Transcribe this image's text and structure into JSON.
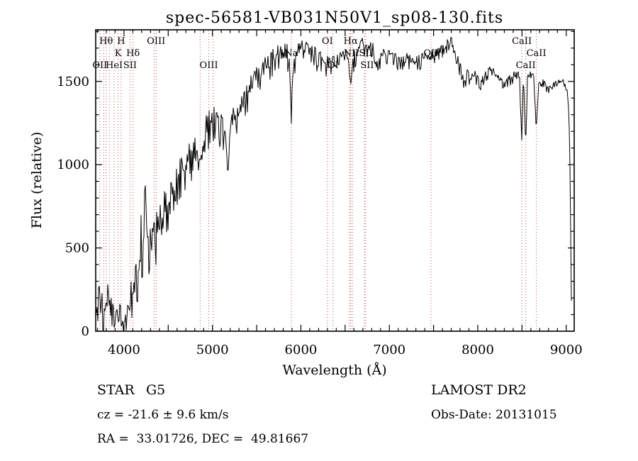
{
  "title": "spec-56581-VB031N50V1_sp08-130.fits",
  "colors": {
    "background": "#ffffff",
    "spectrum": "#000000",
    "frame": "#000000",
    "line_marker": "#b05050",
    "halpha_marker": "#bb2222"
  },
  "axes": {
    "x": {
      "label": "Wavelength (Å)",
      "min": 3680,
      "max": 9090,
      "tick_labels": [
        "4000",
        "5000",
        "6000",
        "7000",
        "8000",
        "9000"
      ],
      "tick_values": [
        4000,
        5000,
        6000,
        7000,
        8000,
        9000
      ],
      "major_step": 500,
      "minor_step": 100
    },
    "y": {
      "label": "Flux (relative)",
      "min": 0,
      "max": 1810,
      "tick_labels": [
        "0",
        "500",
        "1000",
        "1500"
      ],
      "tick_values": [
        0,
        500,
        1000,
        1500
      ],
      "major_step": 500,
      "minor_step": 100
    }
  },
  "footer": {
    "object_type": "STAR",
    "subclass": "G5",
    "cz_line": "cz = -21.6 ± 9.6 km/s",
    "radec_line": "RA =  33.01726, DEC =  49.81667",
    "survey": "LAMOST DR2",
    "obs_date_line": "Obs-Date: 20131015"
  },
  "chart_data": {
    "type": "line",
    "title": "spec-56581-VB031N50V1_sp08-130.fits",
    "xlabel": "Wavelength (Å)",
    "ylabel": "Flux (relative)",
    "xlim": [
      3680,
      9090
    ],
    "ylim": [
      0,
      1810
    ],
    "grid": false,
    "legend": "none",
    "series": [
      {
        "name": "spectrum",
        "color": "#000000",
        "envelope_points": [
          [
            3680,
            140,
            110
          ],
          [
            3700,
            160,
            115
          ],
          [
            3720,
            185,
            115
          ],
          [
            3740,
            150,
            110
          ],
          [
            3760,
            125,
            105
          ],
          [
            3780,
            165,
            110
          ],
          [
            3800,
            115,
            100
          ],
          [
            3820,
            210,
            110
          ],
          [
            3840,
            155,
            105
          ],
          [
            3860,
            115,
            90
          ],
          [
            3880,
            90,
            75
          ],
          [
            3900,
            115,
            80
          ],
          [
            3930,
            70,
            60
          ],
          [
            3960,
            125,
            80
          ],
          [
            4000,
            55,
            50
          ],
          [
            4030,
            95,
            80
          ],
          [
            4060,
            155,
            110
          ],
          [
            4100,
            230,
            125
          ],
          [
            4140,
            330,
            150
          ],
          [
            4180,
            460,
            180
          ],
          [
            4200,
            600,
            220
          ],
          [
            4240,
            680,
            240
          ],
          [
            4280,
            600,
            200
          ],
          [
            4320,
            540,
            160
          ],
          [
            4350,
            560,
            150
          ],
          [
            4380,
            640,
            140
          ],
          [
            4420,
            700,
            130
          ],
          [
            4470,
            760,
            130
          ],
          [
            4520,
            820,
            130
          ],
          [
            4570,
            880,
            130
          ],
          [
            4620,
            930,
            125
          ],
          [
            4670,
            980,
            120
          ],
          [
            4720,
            1020,
            120
          ],
          [
            4770,
            1060,
            120
          ],
          [
            4820,
            1080,
            115
          ],
          [
            4861,
            950,
            95
          ],
          [
            4900,
            1140,
            115
          ],
          [
            4940,
            1220,
            110
          ],
          [
            4980,
            1260,
            110
          ],
          [
            5020,
            1260,
            110
          ],
          [
            5060,
            1250,
            105
          ],
          [
            5100,
            1230,
            100
          ],
          [
            5140,
            1160,
            95
          ],
          [
            5172,
            940,
            60
          ],
          [
            5200,
            1170,
            95
          ],
          [
            5240,
            1280,
            95
          ],
          [
            5280,
            1320,
            90
          ],
          [
            5320,
            1350,
            90
          ],
          [
            5360,
            1390,
            90
          ],
          [
            5400,
            1430,
            90
          ],
          [
            5450,
            1480,
            90
          ],
          [
            5500,
            1520,
            88
          ],
          [
            5550,
            1560,
            85
          ],
          [
            5600,
            1590,
            82
          ],
          [
            5650,
            1615,
            80
          ],
          [
            5700,
            1635,
            80
          ],
          [
            5750,
            1650,
            80
          ],
          [
            5800,
            1660,
            80
          ],
          [
            5850,
            1665,
            78
          ],
          [
            5880,
            1560,
            55
          ],
          [
            5892,
            1270,
            30
          ],
          [
            5905,
            1570,
            55
          ],
          [
            5950,
            1680,
            72
          ],
          [
            6000,
            1700,
            68
          ],
          [
            6050,
            1690,
            64
          ],
          [
            6100,
            1675,
            62
          ],
          [
            6150,
            1655,
            62
          ],
          [
            6200,
            1645,
            62
          ],
          [
            6250,
            1630,
            62
          ],
          [
            6300,
            1600,
            62
          ],
          [
            6350,
            1610,
            62
          ],
          [
            6400,
            1600,
            60
          ],
          [
            6450,
            1625,
            60
          ],
          [
            6500,
            1655,
            62
          ],
          [
            6540,
            1600,
            60
          ],
          [
            6563,
            1480,
            50
          ],
          [
            6590,
            1620,
            58
          ],
          [
            6640,
            1690,
            56
          ],
          [
            6700,
            1730,
            52
          ],
          [
            6760,
            1710,
            52
          ],
          [
            6820,
            1690,
            52
          ],
          [
            6870,
            1630,
            48
          ],
          [
            6920,
            1650,
            50
          ],
          [
            6980,
            1655,
            50
          ],
          [
            7040,
            1640,
            48
          ],
          [
            7100,
            1625,
            46
          ],
          [
            7160,
            1630,
            46
          ],
          [
            7220,
            1635,
            46
          ],
          [
            7280,
            1620,
            48
          ],
          [
            7340,
            1628,
            46
          ],
          [
            7400,
            1638,
            46
          ],
          [
            7460,
            1645,
            46
          ],
          [
            7520,
            1660,
            44
          ],
          [
            7580,
            1690,
            42
          ],
          [
            7640,
            1715,
            40
          ],
          [
            7700,
            1735,
            38
          ],
          [
            7740,
            1700,
            40
          ],
          [
            7780,
            1620,
            42
          ],
          [
            7820,
            1545,
            40
          ],
          [
            7850,
            1470,
            36
          ],
          [
            7880,
            1540,
            38
          ],
          [
            7920,
            1520,
            38
          ],
          [
            7960,
            1545,
            36
          ],
          [
            8000,
            1510,
            36
          ],
          [
            8040,
            1490,
            36
          ],
          [
            8080,
            1520,
            36
          ],
          [
            8120,
            1560,
            34
          ],
          [
            8160,
            1580,
            32
          ],
          [
            8200,
            1545,
            32
          ],
          [
            8240,
            1510,
            32
          ],
          [
            8280,
            1490,
            32
          ],
          [
            8320,
            1500,
            32
          ],
          [
            8360,
            1520,
            32
          ],
          [
            8400,
            1530,
            32
          ],
          [
            8440,
            1540,
            30
          ],
          [
            8470,
            1550,
            26
          ],
          [
            8498,
            1130,
            14
          ],
          [
            8515,
            1540,
            26
          ],
          [
            8542,
            1110,
            14
          ],
          [
            8562,
            1530,
            26
          ],
          [
            8600,
            1545,
            24
          ],
          [
            8630,
            1540,
            22
          ],
          [
            8662,
            1210,
            14
          ],
          [
            8690,
            1480,
            24
          ],
          [
            8730,
            1500,
            24
          ],
          [
            8770,
            1470,
            24
          ],
          [
            8810,
            1460,
            24
          ],
          [
            8850,
            1480,
            24
          ],
          [
            8890,
            1500,
            22
          ],
          [
            8930,
            1490,
            20
          ],
          [
            8960,
            1500,
            18
          ],
          [
            8990,
            1480,
            14
          ],
          [
            9010,
            1450,
            10
          ],
          [
            9030,
            1320,
            7
          ],
          [
            9045,
            900,
            5
          ],
          [
            9055,
            300,
            4
          ],
          [
            9062,
            15,
            3
          ]
        ]
      }
    ],
    "noise": {
      "seed": 987654321,
      "scale": 0.9,
      "spike_threshold": -0.55,
      "spike_boost": 1.6
    },
    "line_markers": [
      {
        "wavelength": 3727,
        "label": "OII",
        "row": 3
      },
      {
        "wavelength": 3771,
        "label": "",
        "row": 0
      },
      {
        "wavelength": 3798,
        "label": "Hθ",
        "row": 1
      },
      {
        "wavelength": 3835,
        "label": "",
        "row": 0
      },
      {
        "wavelength": 3889,
        "label": "HeI",
        "row": 3
      },
      {
        "wavelength": 3933,
        "label": "K",
        "row": 2
      },
      {
        "wavelength": 3968,
        "label": "H",
        "row": 1
      },
      {
        "wavelength": 4068,
        "label": "SII",
        "row": 3
      },
      {
        "wavelength": 4102,
        "label": "Hδ",
        "row": 2
      },
      {
        "wavelength": 4340,
        "label": "",
        "row": 0
      },
      {
        "wavelength": 4363,
        "label": "OIII",
        "row": 1
      },
      {
        "wavelength": 4861,
        "label": "",
        "row": 0
      },
      {
        "wavelength": 4959,
        "label": "OIII",
        "row": 3
      },
      {
        "wavelength": 5007,
        "label": "",
        "row": 0
      },
      {
        "wavelength": 5892,
        "label": "Na",
        "row": 2
      },
      {
        "wavelength": 6300,
        "label": "OI",
        "row": 1
      },
      {
        "wavelength": 6363,
        "label": "OI",
        "row": 3
      },
      {
        "wavelength": 6548,
        "label": "",
        "row": 0
      },
      {
        "wavelength": 6563,
        "label": "Hα",
        "row": 1,
        "color": "#bb2222"
      },
      {
        "wavelength": 6583,
        "label": "NIISII",
        "row": 2,
        "dx": 8
      },
      {
        "wavelength": 6717,
        "label": "SII",
        "row": 3,
        "dx": 4
      },
      {
        "wavelength": 6731,
        "label": "",
        "row": 0
      },
      {
        "wavelength": 7470,
        "label": "OII",
        "row": 2
      },
      {
        "wavelength": 8498,
        "label": "CaII",
        "row": 1
      },
      {
        "wavelength": 8542,
        "label": "CaII",
        "row": 3
      },
      {
        "wavelength": 8662,
        "label": "CaII",
        "row": 2
      }
    ]
  }
}
